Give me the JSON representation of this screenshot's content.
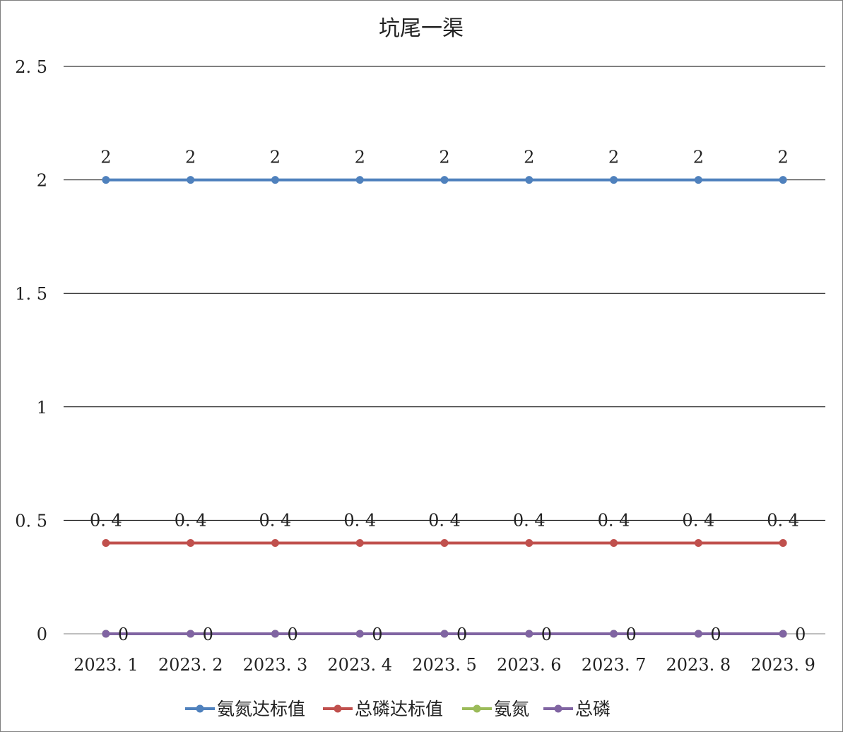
{
  "chart_data": {
    "type": "line",
    "title": "坑尾一渠",
    "xlabel": "",
    "ylabel": "",
    "categories": [
      "2023.1",
      "2023.2",
      "2023.3",
      "2023.4",
      "2023.5",
      "2023.6",
      "2023.7",
      "2023.8",
      "2023.9"
    ],
    "y_tick_labels": [
      "0",
      "0.5",
      "1",
      "1.5",
      "2",
      "2.5"
    ],
    "ylim": [
      0,
      2.5
    ],
    "grid": "horizontal",
    "legend_position": "bottom",
    "series": [
      {
        "name": "氨氮达标值",
        "color": "#4f81bd",
        "values": [
          2,
          2,
          2,
          2,
          2,
          2,
          2,
          2,
          2
        ],
        "data_labels": [
          "2",
          "2",
          "2",
          "2",
          "2",
          "2",
          "2",
          "2",
          "2"
        ],
        "label_position": "above"
      },
      {
        "name": "总磷达标值",
        "color": "#c0504d",
        "values": [
          0.4,
          0.4,
          0.4,
          0.4,
          0.4,
          0.4,
          0.4,
          0.4,
          0.4
        ],
        "data_labels": [
          "0.4",
          "0.4",
          "0.4",
          "0.4",
          "0.4",
          "0.4",
          "0.4",
          "0.4",
          "0.4"
        ],
        "label_position": "above"
      },
      {
        "name": "氨氮",
        "color": "#9bbb59",
        "values": [
          0,
          0,
          0,
          0,
          0,
          0,
          0,
          0,
          0
        ],
        "data_labels": [],
        "label_position": "none"
      },
      {
        "name": "总磷",
        "color": "#8064a2",
        "values": [
          0,
          0,
          0,
          0,
          0,
          0,
          0,
          0,
          0
        ],
        "data_labels": [
          "0",
          "0",
          "0",
          "0",
          "0",
          "0",
          "0",
          "0",
          "0"
        ],
        "label_position": "right"
      }
    ]
  }
}
